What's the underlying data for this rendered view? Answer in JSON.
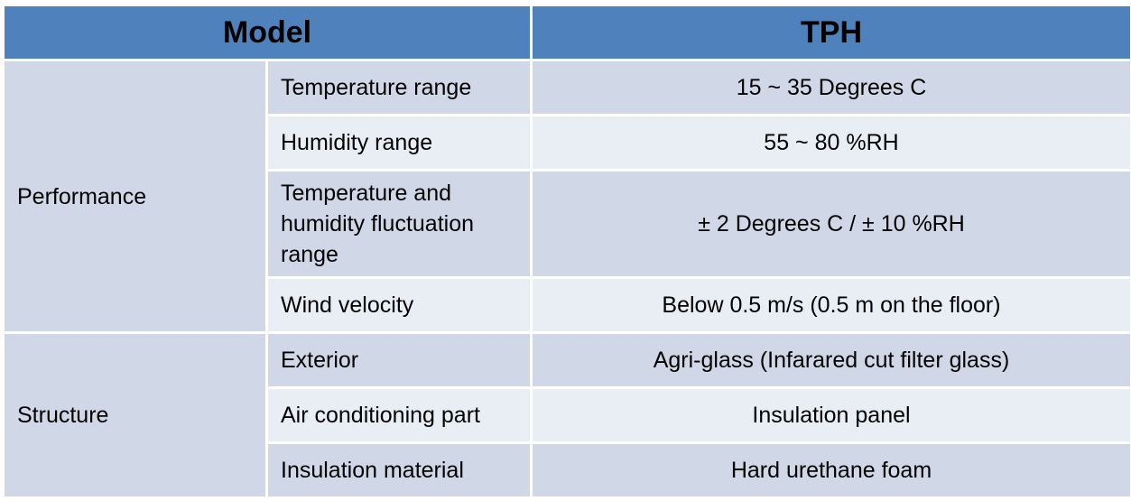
{
  "header": {
    "model_label": "Model",
    "model_value": "TPH"
  },
  "groups": [
    {
      "name": "Performance",
      "rows": [
        {
          "parameter": "Temperature range",
          "value": "15 ~ 35 Degrees C"
        },
        {
          "parameter": "Humidity range",
          "value": "55 ~ 80 %RH"
        },
        {
          "parameter": "Temperature and humidity fluctuation range",
          "value": "± 2 Degrees C / ± 10 %RH"
        },
        {
          "parameter": "Wind velocity",
          "value": "Below 0.5 m/s (0.5 m on the floor)"
        }
      ]
    },
    {
      "name": "Structure",
      "rows": [
        {
          "parameter": "Exterior",
          "value": "Agri-glass (Infarared cut filter glass)"
        },
        {
          "parameter": "Air conditioning part",
          "value": "Insulation panel"
        },
        {
          "parameter": "Insulation material",
          "value": "Hard urethane foam"
        }
      ]
    }
  ],
  "colors": {
    "header_bg": "#4f81bd",
    "row_dark": "#d0d8e8",
    "row_light": "#e9edf4",
    "border": "#ffffff"
  }
}
